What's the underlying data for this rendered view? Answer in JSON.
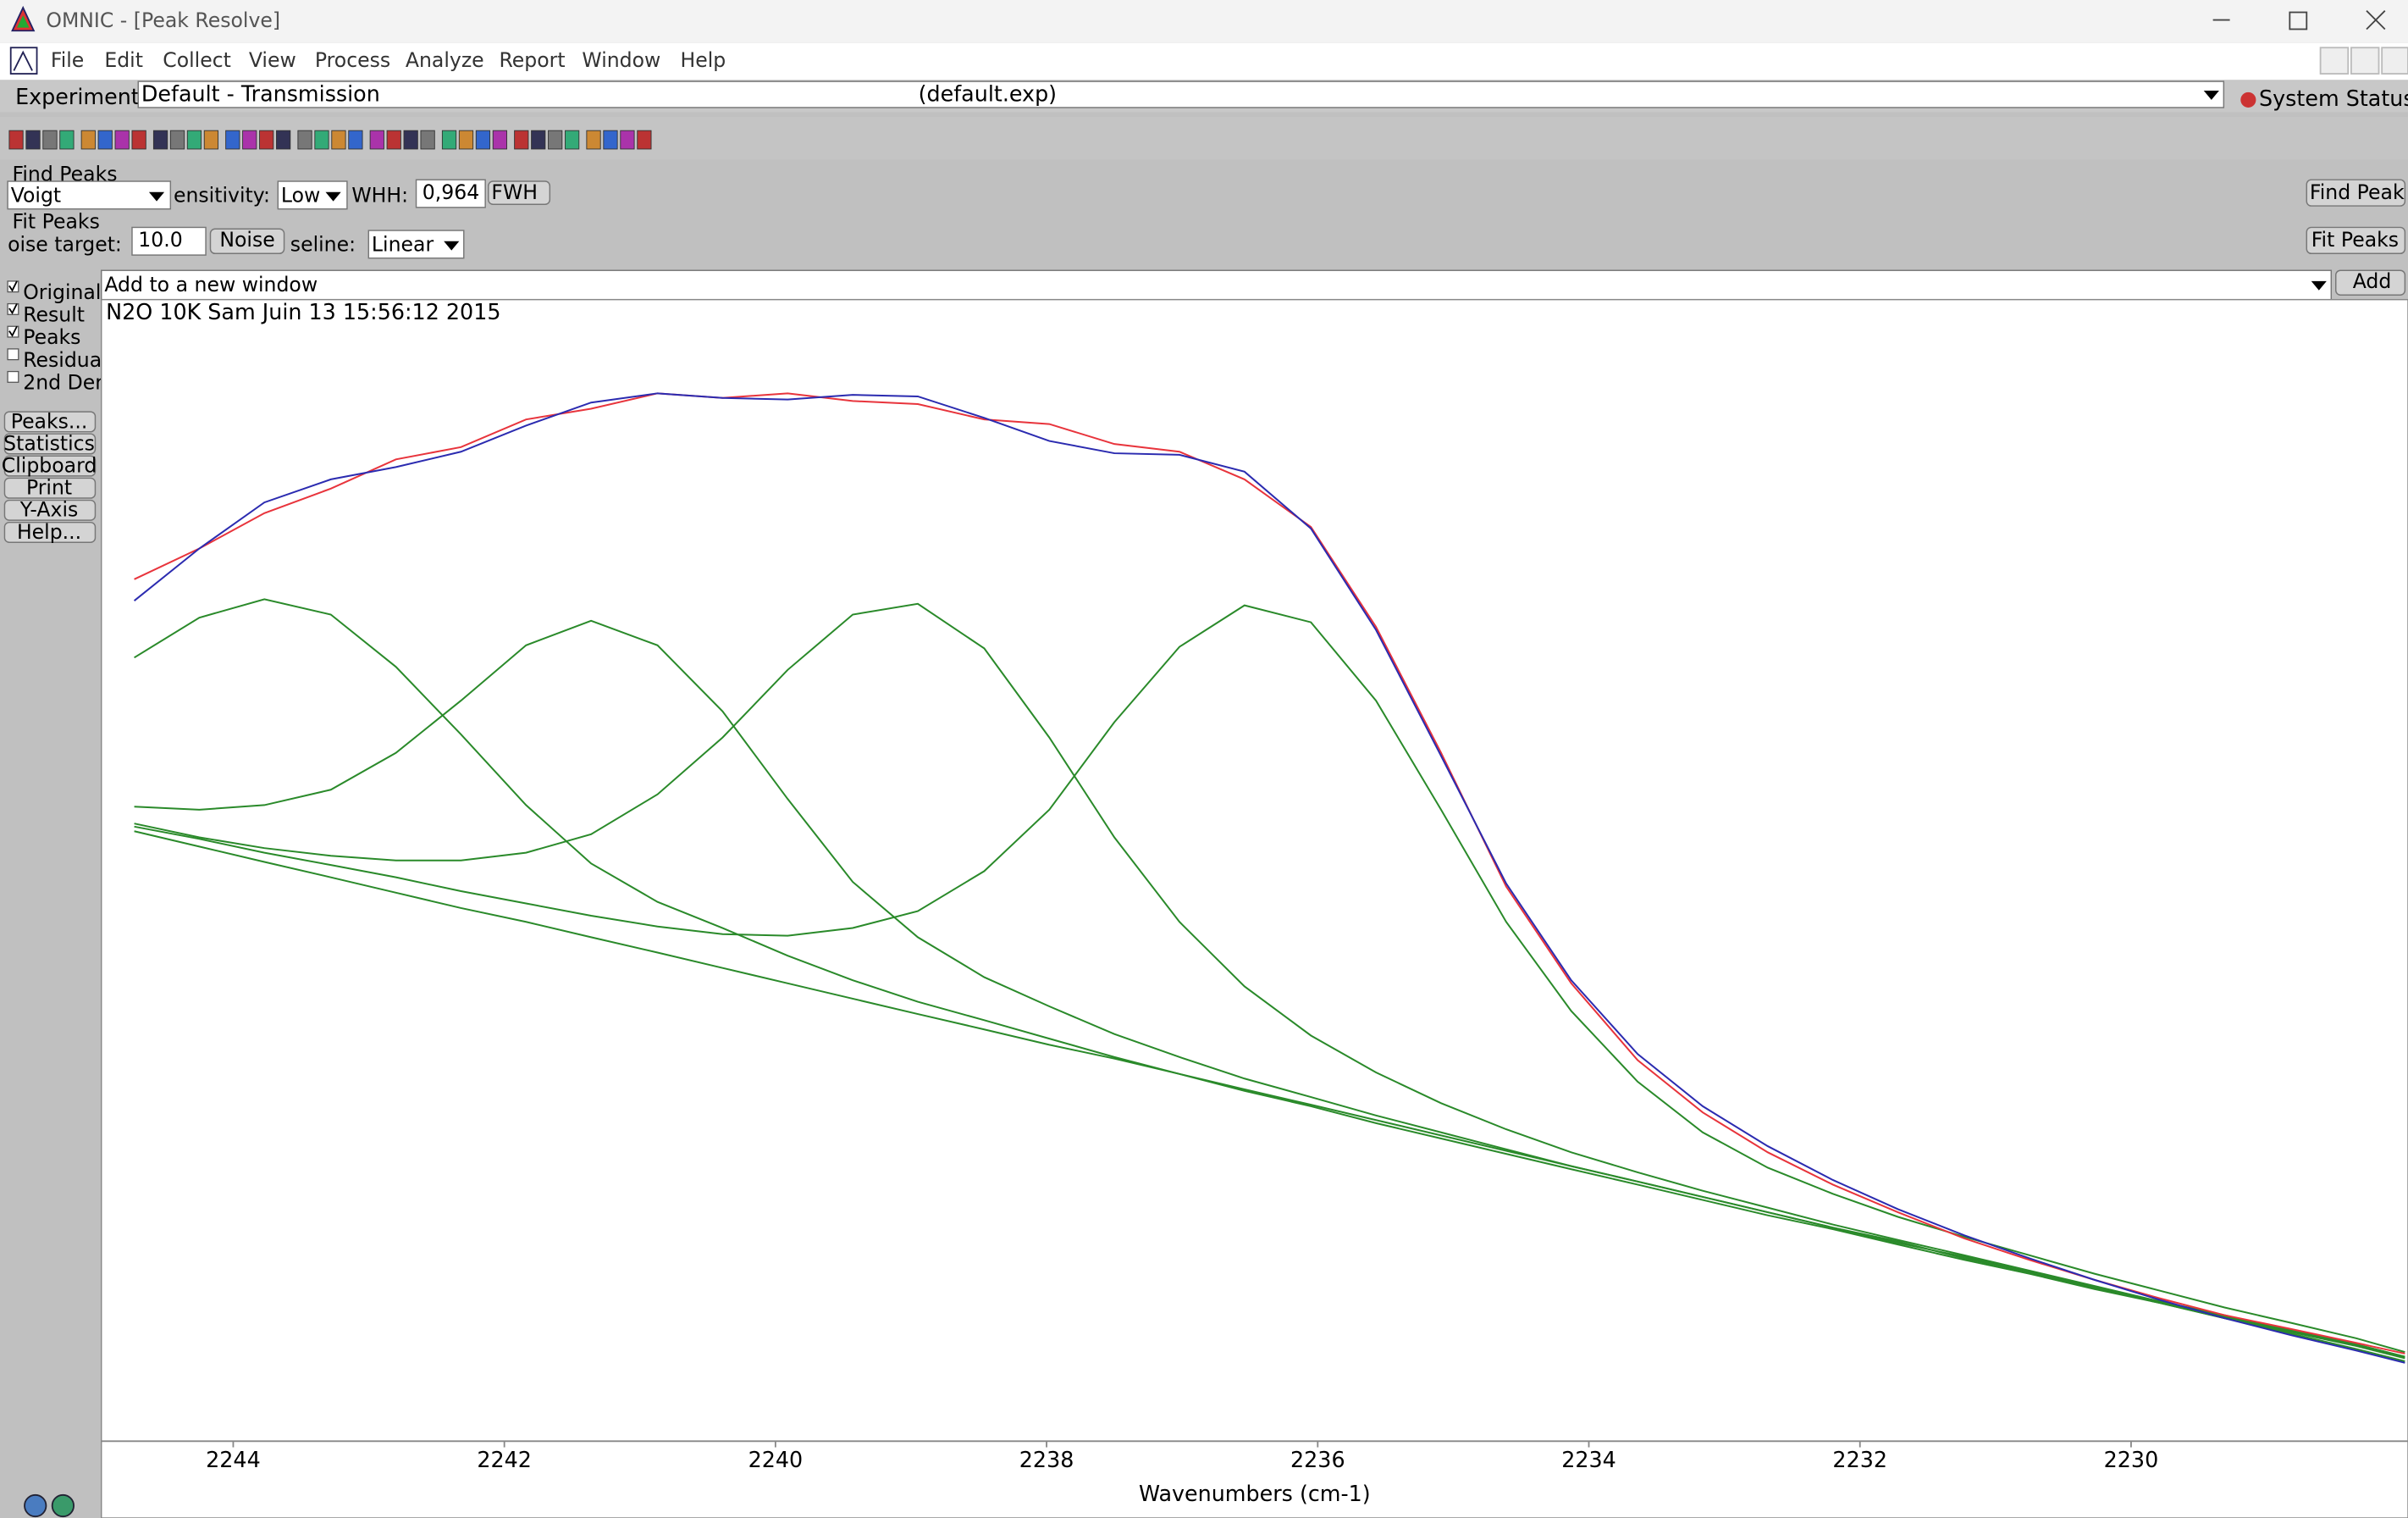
{
  "window": {
    "title": "OMNIC - [Peak Resolve]"
  },
  "menu": [
    "File",
    "Edit",
    "Collect",
    "View",
    "Process",
    "Analyze",
    "Report",
    "Window",
    "Help"
  ],
  "experiment": {
    "label": "Experiment:",
    "value": "Default - Transmission",
    "file": "(default.exp)",
    "status": "System Status"
  },
  "find_peaks": {
    "title": "Find Peaks",
    "function": "Voigt",
    "sensitivity_label": "ensitivity:",
    "sensitivity": "Low",
    "fwhh_label": "WHH:",
    "fwhh": "0,964",
    "fwhh_button": "FWH",
    "button": "Find Peak"
  },
  "fit_peaks": {
    "title": "Fit Peaks",
    "noise_label": "oise target:",
    "noise": "10.0",
    "noise_button": "Noise",
    "baseline_label": "seline:",
    "baseline": "Linear",
    "button": "Fit Peaks"
  },
  "display": {
    "checkboxes": [
      {
        "label": "Original",
        "checked": true
      },
      {
        "label": "Result",
        "checked": true
      },
      {
        "label": "Peaks",
        "checked": true
      },
      {
        "label": "Residua",
        "checked": false
      },
      {
        "label": "2nd Der",
        "checked": false
      }
    ]
  },
  "side_buttons": [
    "Peaks...",
    "Statistics",
    "Clipboard",
    "Print",
    "Y-Axis",
    "Help..."
  ],
  "output": {
    "value": "Add to a new window",
    "button": "Add"
  },
  "chart_data": {
    "type": "line",
    "title": "N2O 10K Sam Juin 13 15:56:12 2015",
    "xlabel": "Wavenumbers (cm-1)",
    "x": [
      2244.73,
      2244.25,
      2243.77,
      2243.28,
      2242.8,
      2242.32,
      2241.84,
      2241.36,
      2240.87,
      2240.39,
      2239.91,
      2239.43,
      2238.95,
      2238.46,
      2237.98,
      2237.5,
      2237.02,
      2236.54,
      2236.05,
      2235.57,
      2235.09,
      2234.61,
      2234.13,
      2233.64,
      2233.16,
      2232.68,
      2232.2,
      2231.72,
      2231.23,
      2230.75,
      2230.27,
      2229.79,
      2229.31,
      2228.82,
      2228.34,
      2227.98
    ],
    "xlim": [
      2244.95,
      2227.98
    ],
    "xticks": [
      2244,
      2242,
      2240,
      2238,
      2236,
      2234,
      2232,
      2230
    ],
    "ylim": [
      0,
      742
    ],
    "grid": false,
    "series": [
      {
        "color": "#2b2bb0",
        "values": [
          547,
          581,
          611,
          626,
          634,
          644,
          661,
          676,
          682,
          679,
          678,
          681,
          680,
          666,
          651,
          643,
          642,
          631,
          594,
          528,
          446,
          363,
          300,
          252,
          218,
          192,
          170,
          151,
          134,
          119,
          105,
          92,
          80,
          69,
          59,
          51
        ]
      },
      {
        "color": "#e8343c",
        "values": [
          561,
          581,
          604,
          620,
          639,
          647,
          665,
          672,
          682,
          679,
          682,
          677,
          675,
          665,
          662,
          649,
          644,
          626,
          595,
          530,
          448,
          361,
          298,
          248,
          214,
          188,
          167,
          149,
          132,
          118,
          105,
          93,
          82,
          73,
          64,
          57
        ]
      },
      {
        "color": "#2a8a2a",
        "values": [
          510,
          536,
          548,
          538,
          504,
          460,
          414,
          376,
          351,
          334,
          316,
          300,
          286,
          274,
          262,
          250,
          239,
          228,
          218,
          207,
          197,
          187,
          177,
          167,
          157,
          147,
          138,
          128,
          118,
          109,
          99,
          90,
          80,
          71,
          62,
          54
        ]
      },
      {
        "color": "#2a8a2a",
        "values": [
          413,
          411,
          414,
          424,
          448,
          482,
          518,
          534,
          518,
          475,
          418,
          364,
          328,
          302,
          283,
          265,
          250,
          236,
          224,
          212,
          201,
          190,
          179,
          169,
          159,
          149,
          139,
          129,
          120,
          110,
          100,
          91,
          81,
          72,
          63,
          55
        ]
      },
      {
        "color": "#2a8a2a",
        "values": [
          402,
          393,
          386,
          381,
          378,
          378,
          383,
          395,
          421,
          458,
          502,
          538,
          545,
          516,
          458,
          393,
          338,
          296,
          264,
          240,
          220,
          203,
          188,
          175,
          163,
          152,
          141,
          131,
          121,
          111,
          101,
          91,
          82,
          72,
          63,
          55
        ]
      },
      {
        "color": "#2a8a2a",
        "values": [
          400,
          392,
          383,
          375,
          367,
          358,
          350,
          342,
          335,
          330,
          329,
          334,
          345,
          371,
          411,
          468,
          517,
          544,
          533,
          482,
          411,
          338,
          280,
          234,
          201,
          178,
          161,
          146,
          133,
          121,
          109,
          98,
          87,
          77,
          67,
          58
        ]
      },
      {
        "color": "#2a8a2a",
        "values": [
          397,
          387,
          377,
          367,
          357,
          347,
          338,
          328,
          318,
          308,
          298,
          288,
          278,
          268,
          258,
          249,
          239,
          229,
          219,
          209,
          199,
          189,
          179,
          169,
          159,
          149,
          139,
          130,
          119,
          110,
          100,
          90,
          80,
          70,
          60,
          52
        ]
      }
    ]
  }
}
